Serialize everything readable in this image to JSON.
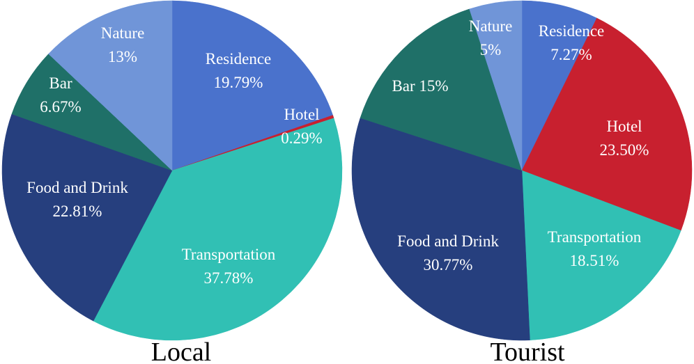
{
  "chart_data": [
    {
      "type": "pie",
      "title": "Local",
      "start_angle_deg": 0,
      "slices": [
        {
          "label": "Residence",
          "value": 19.79,
          "display": "19.79%",
          "color": "#4a72cc"
        },
        {
          "label": "Hotel",
          "value": 0.29,
          "display": "0.29%",
          "color": "#c8202f"
        },
        {
          "label": "Transportation",
          "value": 37.78,
          "display": "37.78%",
          "color": "#31c0b4"
        },
        {
          "label": "Food and Drink",
          "value": 22.81,
          "display": "22.81%",
          "color": "#263f7e"
        },
        {
          "label": "Bar",
          "value": 6.67,
          "display": "6.67%",
          "color": "#1f7068"
        },
        {
          "label": "Nature",
          "value": 13,
          "display": "13%",
          "color": "#7095d8"
        }
      ]
    },
    {
      "type": "pie",
      "title": "Tourist",
      "start_angle_deg": 0,
      "slices": [
        {
          "label": "Residence",
          "value": 7.27,
          "display": "7.27%",
          "color": "#4a72cc"
        },
        {
          "label": "Hotel",
          "value": 23.5,
          "display": "23.50%",
          "color": "#c8202f"
        },
        {
          "label": "Transportation",
          "value": 18.51,
          "display": "18.51%",
          "color": "#31c0b4"
        },
        {
          "label": "Food and Drink",
          "value": 30.77,
          "display": "30.77%",
          "color": "#263f7e"
        },
        {
          "label": "Bar",
          "value": 15,
          "display": "15%",
          "color": "#1f7068"
        },
        {
          "label": "Nature",
          "value": 5,
          "display": "5%",
          "color": "#7095d8"
        }
      ]
    }
  ]
}
